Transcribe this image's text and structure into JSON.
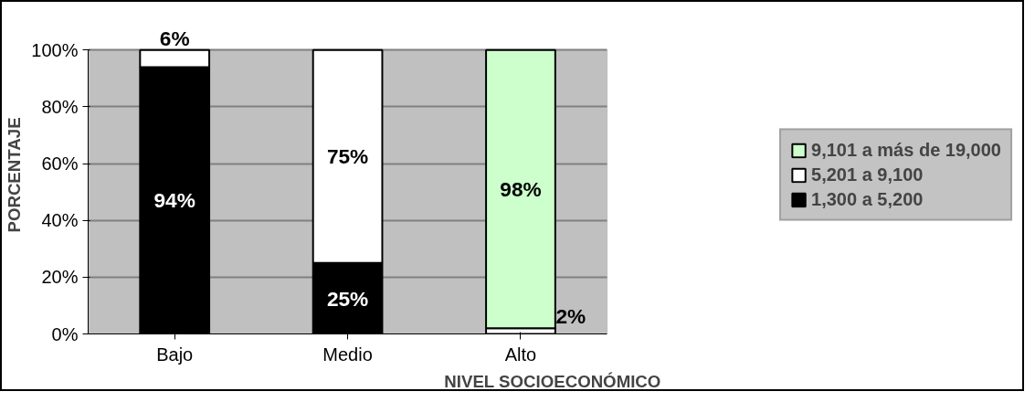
{
  "chart_data": {
    "type": "bar",
    "stacked": true,
    "xlabel": "NIVEL SOCIOECONÓMICO",
    "ylabel": "PORCENTAJE",
    "categories": [
      "Bajo",
      "Medio",
      "Alto"
    ],
    "series": [
      {
        "name": "1,300 a 5,200",
        "color": "#000000",
        "values": [
          94,
          25,
          null
        ],
        "value_labels": [
          "94%",
          "25%",
          null
        ]
      },
      {
        "name": "5,201 a 9,100",
        "color": "#ffffff",
        "values": [
          6,
          75,
          2
        ],
        "value_labels": [
          "6%",
          "75%",
          "2%"
        ]
      },
      {
        "name": "9,101 a más de 19,000",
        "color": "#ccffcc",
        "values": [
          null,
          null,
          98
        ],
        "value_labels": [
          null,
          null,
          "98%"
        ]
      }
    ],
    "ylim": [
      0,
      100
    ],
    "yticks": [
      {
        "value": 0,
        "label": "0%"
      },
      {
        "value": 20,
        "label": "20%"
      },
      {
        "value": 40,
        "label": "40%"
      },
      {
        "value": 60,
        "label": "60%"
      },
      {
        "value": 80,
        "label": "80%"
      },
      {
        "value": 100,
        "label": "100%"
      }
    ],
    "grid": "y",
    "legend": "right"
  }
}
